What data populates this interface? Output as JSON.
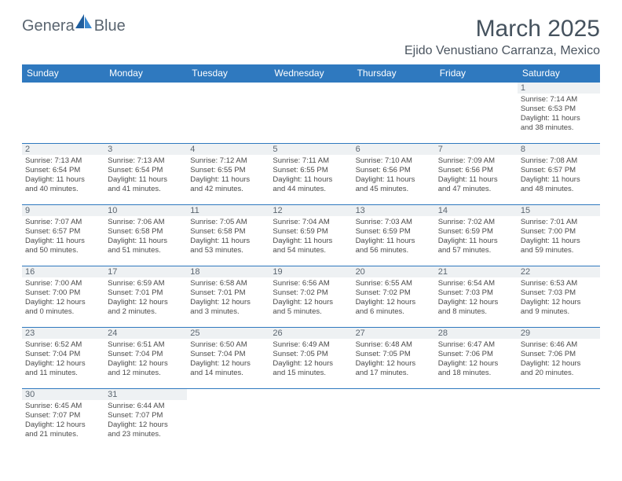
{
  "logo": {
    "text_left": "Genera",
    "text_right": "Blue"
  },
  "title": "March 2025",
  "location": "Ejido Venustiano Carranza, Mexico",
  "colors": {
    "header_bg": "#2f79bf",
    "daynum_bg": "#eef1f3",
    "text_dark": "#45525e"
  },
  "day_headers": [
    "Sunday",
    "Monday",
    "Tuesday",
    "Wednesday",
    "Thursday",
    "Friday",
    "Saturday"
  ],
  "weeks": [
    [
      null,
      null,
      null,
      null,
      null,
      null,
      {
        "n": "1",
        "sunrise": "7:14 AM",
        "sunset": "6:53 PM",
        "dl_h": "11",
        "dl_m": "38"
      }
    ],
    [
      {
        "n": "2",
        "sunrise": "7:13 AM",
        "sunset": "6:54 PM",
        "dl_h": "11",
        "dl_m": "40"
      },
      {
        "n": "3",
        "sunrise": "7:13 AM",
        "sunset": "6:54 PM",
        "dl_h": "11",
        "dl_m": "41"
      },
      {
        "n": "4",
        "sunrise": "7:12 AM",
        "sunset": "6:55 PM",
        "dl_h": "11",
        "dl_m": "42"
      },
      {
        "n": "5",
        "sunrise": "7:11 AM",
        "sunset": "6:55 PM",
        "dl_h": "11",
        "dl_m": "44"
      },
      {
        "n": "6",
        "sunrise": "7:10 AM",
        "sunset": "6:56 PM",
        "dl_h": "11",
        "dl_m": "45"
      },
      {
        "n": "7",
        "sunrise": "7:09 AM",
        "sunset": "6:56 PM",
        "dl_h": "11",
        "dl_m": "47"
      },
      {
        "n": "8",
        "sunrise": "7:08 AM",
        "sunset": "6:57 PM",
        "dl_h": "11",
        "dl_m": "48"
      }
    ],
    [
      {
        "n": "9",
        "sunrise": "7:07 AM",
        "sunset": "6:57 PM",
        "dl_h": "11",
        "dl_m": "50"
      },
      {
        "n": "10",
        "sunrise": "7:06 AM",
        "sunset": "6:58 PM",
        "dl_h": "11",
        "dl_m": "51"
      },
      {
        "n": "11",
        "sunrise": "7:05 AM",
        "sunset": "6:58 PM",
        "dl_h": "11",
        "dl_m": "53"
      },
      {
        "n": "12",
        "sunrise": "7:04 AM",
        "sunset": "6:59 PM",
        "dl_h": "11",
        "dl_m": "54"
      },
      {
        "n": "13",
        "sunrise": "7:03 AM",
        "sunset": "6:59 PM",
        "dl_h": "11",
        "dl_m": "56"
      },
      {
        "n": "14",
        "sunrise": "7:02 AM",
        "sunset": "6:59 PM",
        "dl_h": "11",
        "dl_m": "57"
      },
      {
        "n": "15",
        "sunrise": "7:01 AM",
        "sunset": "7:00 PM",
        "dl_h": "11",
        "dl_m": "59"
      }
    ],
    [
      {
        "n": "16",
        "sunrise": "7:00 AM",
        "sunset": "7:00 PM",
        "dl_h": "12",
        "dl_m": "0"
      },
      {
        "n": "17",
        "sunrise": "6:59 AM",
        "sunset": "7:01 PM",
        "dl_h": "12",
        "dl_m": "2"
      },
      {
        "n": "18",
        "sunrise": "6:58 AM",
        "sunset": "7:01 PM",
        "dl_h": "12",
        "dl_m": "3"
      },
      {
        "n": "19",
        "sunrise": "6:56 AM",
        "sunset": "7:02 PM",
        "dl_h": "12",
        "dl_m": "5"
      },
      {
        "n": "20",
        "sunrise": "6:55 AM",
        "sunset": "7:02 PM",
        "dl_h": "12",
        "dl_m": "6"
      },
      {
        "n": "21",
        "sunrise": "6:54 AM",
        "sunset": "7:03 PM",
        "dl_h": "12",
        "dl_m": "8"
      },
      {
        "n": "22",
        "sunrise": "6:53 AM",
        "sunset": "7:03 PM",
        "dl_h": "12",
        "dl_m": "9"
      }
    ],
    [
      {
        "n": "23",
        "sunrise": "6:52 AM",
        "sunset": "7:04 PM",
        "dl_h": "12",
        "dl_m": "11"
      },
      {
        "n": "24",
        "sunrise": "6:51 AM",
        "sunset": "7:04 PM",
        "dl_h": "12",
        "dl_m": "12"
      },
      {
        "n": "25",
        "sunrise": "6:50 AM",
        "sunset": "7:04 PM",
        "dl_h": "12",
        "dl_m": "14"
      },
      {
        "n": "26",
        "sunrise": "6:49 AM",
        "sunset": "7:05 PM",
        "dl_h": "12",
        "dl_m": "15"
      },
      {
        "n": "27",
        "sunrise": "6:48 AM",
        "sunset": "7:05 PM",
        "dl_h": "12",
        "dl_m": "17"
      },
      {
        "n": "28",
        "sunrise": "6:47 AM",
        "sunset": "7:06 PM",
        "dl_h": "12",
        "dl_m": "18"
      },
      {
        "n": "29",
        "sunrise": "6:46 AM",
        "sunset": "7:06 PM",
        "dl_h": "12",
        "dl_m": "20"
      }
    ],
    [
      {
        "n": "30",
        "sunrise": "6:45 AM",
        "sunset": "7:07 PM",
        "dl_h": "12",
        "dl_m": "21"
      },
      {
        "n": "31",
        "sunrise": "6:44 AM",
        "sunset": "7:07 PM",
        "dl_h": "12",
        "dl_m": "23"
      },
      null,
      null,
      null,
      null,
      null
    ]
  ]
}
